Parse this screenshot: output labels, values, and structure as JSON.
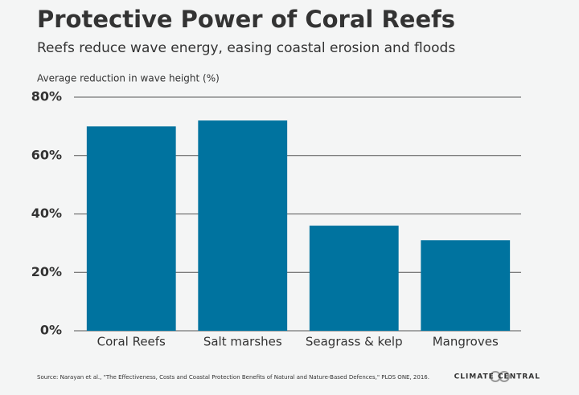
{
  "chart_data": {
    "type": "bar",
    "title": "Protective Power of Coral Reefs",
    "subtitle": "Reefs reduce wave energy, easing coastal erosion and floods",
    "y_label": "Average reduction in wave height (%)",
    "categories": [
      "Coral Reefs",
      "Salt marshes",
      "Seagrass & kelp",
      "Mangroves"
    ],
    "values": [
      70,
      72,
      36,
      31
    ],
    "color": "#00739f",
    "ylim": [
      0,
      80
    ],
    "yticks": [
      {
        "value": 0,
        "label": "0%"
      },
      {
        "value": 20,
        "label": "20%"
      },
      {
        "value": 40,
        "label": "40%"
      },
      {
        "value": 60,
        "label": "60%"
      },
      {
        "value": 80,
        "label": "80%"
      }
    ],
    "grid": true,
    "source": "Source: Narayan et al., \"The Effectiveness, Costs and Coastal Protection Benefits of Natural and Nature-Based Defences,\" PLOS ONE, 2016.",
    "brand": "CLIMATE CENTRAL"
  }
}
